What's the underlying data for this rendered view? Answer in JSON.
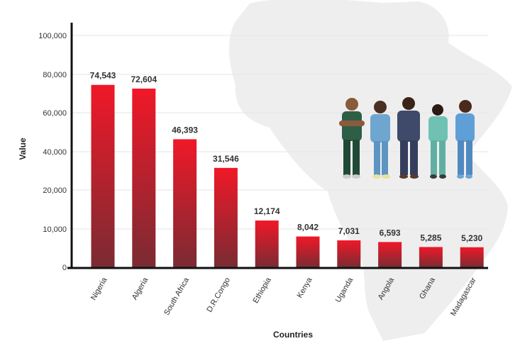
{
  "chart_data": {
    "type": "bar",
    "title": "",
    "xlabel": "Countries",
    "ylabel": "Value",
    "categories": [
      "Nigeria",
      "Algeria",
      "South Africa",
      "D.R.Congo",
      "Ethiopia",
      "Kenya",
      "Uganda",
      "Angola",
      "Ghana",
      "Madagascar"
    ],
    "values": [
      74543,
      72604,
      46393,
      31546,
      12174,
      8042,
      7031,
      6593,
      5285,
      5230
    ],
    "value_labels": [
      "74,543",
      "72,604",
      "46,393",
      "31,546",
      "12,174",
      "8,042",
      "7,031",
      "6,593",
      "5,285",
      "5,230"
    ],
    "yticks": [
      0,
      10000,
      20000,
      40000,
      60000,
      80000,
      100000
    ],
    "ytick_labels": [
      "0",
      "10,000",
      "20,000",
      "40,000",
      "60,000",
      "80,000",
      "100,000"
    ],
    "ylim": [
      0,
      100000
    ],
    "grid": true,
    "legend": "none",
    "colors": {
      "bar_top": "#f01828",
      "bar_bottom": "#7a2b33",
      "grid": "#e6e6e6",
      "axis": "#111111",
      "map_silhouette": "#eeeeee"
    }
  },
  "illustration": {
    "description_icons": [
      "healthcare-workers-illustration",
      "africa-map-silhouette"
    ]
  }
}
